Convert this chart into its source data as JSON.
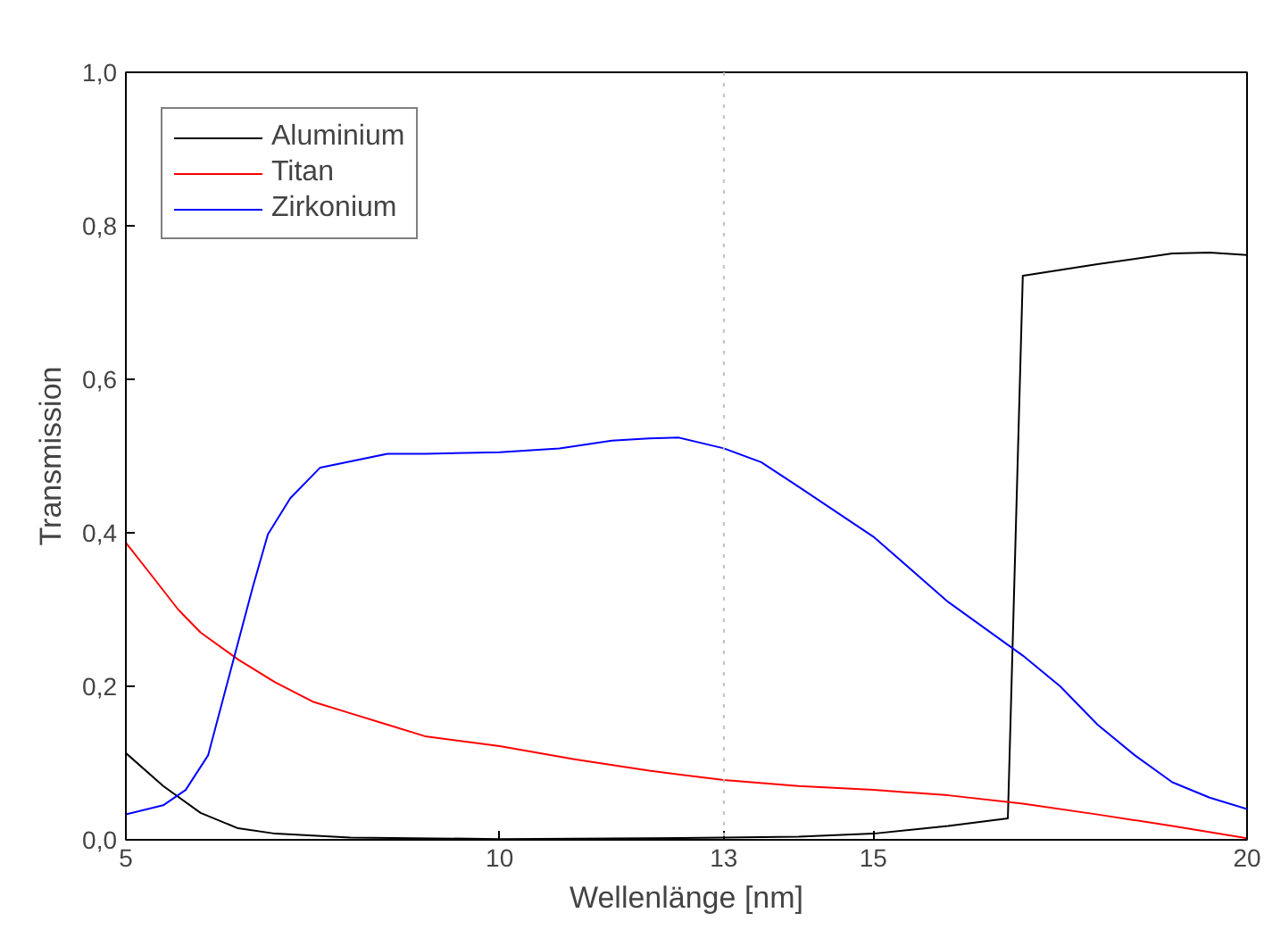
{
  "chart_data": {
    "type": "line",
    "xlabel": "Wellenlänge [nm]",
    "ylabel": "Transmission",
    "xlim": [
      5,
      20
    ],
    "ylim": [
      0,
      1
    ],
    "xticks": [
      5,
      10,
      13,
      15,
      20
    ],
    "yticks": [
      {
        "value": 0,
        "label": "0,0"
      },
      {
        "value": 0.2,
        "label": "0,2"
      },
      {
        "value": 0.4,
        "label": "0,4"
      },
      {
        "value": 0.6,
        "label": "0,6"
      },
      {
        "value": 0.8,
        "label": "0,8"
      },
      {
        "value": 1,
        "label": "1,0"
      }
    ],
    "grid": false,
    "legend": "top left",
    "line_style": "solid",
    "marker": "none",
    "ref_lines": [
      {
        "axis": "x",
        "value": 13,
        "label": null,
        "color": "#c0c0c0",
        "line_style": "dotted"
      }
    ],
    "series": [
      {
        "name": "Aluminium",
        "color": "#000000",
        "x": [
          5,
          5.5,
          6,
          6.5,
          7,
          8,
          10,
          12,
          13,
          14,
          15,
          16,
          16.8,
          17,
          18,
          19,
          19.5,
          20
        ],
        "values": [
          0.113,
          0.07,
          0.035,
          0.015,
          0.008,
          0.003,
          0.001,
          0.002,
          0.003,
          0.004,
          0.008,
          0.018,
          0.028,
          0.735,
          0.75,
          0.764,
          0.765,
          0.762
        ]
      },
      {
        "name": "Titan",
        "color": "#ff0000",
        "x": [
          5,
          5.3,
          5.7,
          6,
          6.5,
          7,
          7.5,
          8,
          8.5,
          9,
          10,
          11,
          12,
          13,
          14,
          15,
          16,
          17,
          18,
          19,
          20
        ],
        "values": [
          0.387,
          0.35,
          0.3,
          0.27,
          0.235,
          0.205,
          0.18,
          0.165,
          0.15,
          0.135,
          0.122,
          0.105,
          0.09,
          0.078,
          0.07,
          0.065,
          0.058,
          0.047,
          0.033,
          0.018,
          0.002
        ]
      },
      {
        "name": "Zirkonium",
        "color": "#0000ff",
        "x": [
          5,
          5.5,
          5.8,
          6.1,
          6.4,
          6.7,
          6.9,
          7.2,
          7.6,
          8.5,
          9,
          10,
          10.8,
          11.5,
          12,
          12.4,
          13,
          13.5,
          14,
          15,
          16,
          17,
          17.5,
          18,
          18.5,
          19,
          19.5,
          20
        ],
        "values": [
          0.033,
          0.045,
          0.065,
          0.11,
          0.22,
          0.33,
          0.398,
          0.445,
          0.485,
          0.503,
          0.503,
          0.505,
          0.51,
          0.52,
          0.523,
          0.524,
          0.51,
          0.492,
          0.46,
          0.395,
          0.31,
          0.24,
          0.2,
          0.15,
          0.11,
          0.075,
          0.055,
          0.04
        ]
      }
    ]
  }
}
